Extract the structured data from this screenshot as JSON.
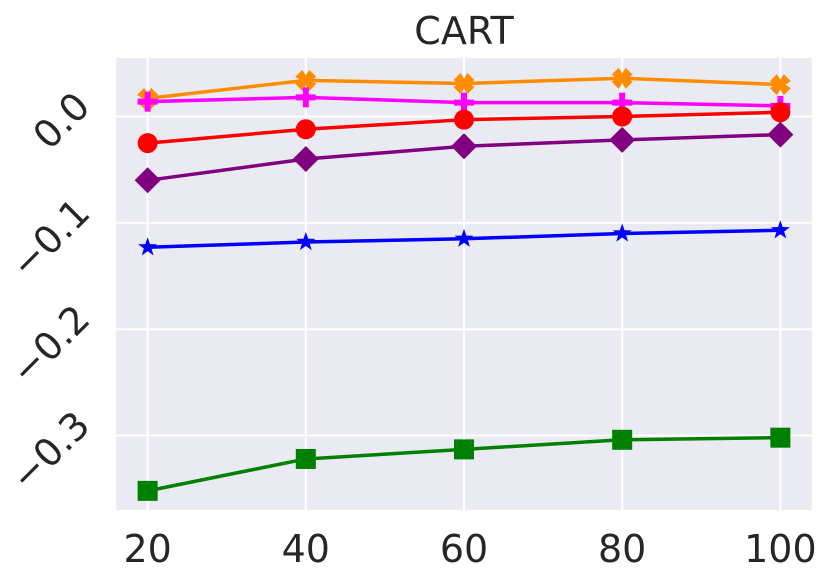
{
  "chart_data": {
    "type": "line",
    "title": "CART",
    "xlabel": "",
    "ylabel": "",
    "x": [
      20,
      40,
      60,
      80,
      100
    ],
    "xticks": [
      "20",
      "40",
      "60",
      "80",
      "100"
    ],
    "yticks": [
      "0.0",
      "−0.1",
      "−0.2",
      "−0.3"
    ],
    "ytick_values": [
      0.0,
      -0.1,
      -0.2,
      -0.3
    ],
    "xlim": [
      16,
      104
    ],
    "ylim": [
      -0.37,
      0.055
    ],
    "grid": true,
    "legend": "none",
    "background": "#eaeaf2",
    "series": [
      {
        "color": "#ff8c00",
        "marker": "x",
        "values": [
          0.017,
          0.034,
          0.031,
          0.036,
          0.03
        ]
      },
      {
        "color": "#ff00ff",
        "marker": "plus",
        "values": [
          0.014,
          0.018,
          0.013,
          0.013,
          0.01
        ]
      },
      {
        "color": "#ff0000",
        "marker": "circle",
        "values": [
          -0.025,
          -0.012,
          -0.003,
          0.0,
          0.004
        ]
      },
      {
        "color": "#800080",
        "marker": "diamond",
        "values": [
          -0.06,
          -0.04,
          -0.028,
          -0.022,
          -0.017
        ]
      },
      {
        "color": "#0000ff",
        "marker": "star",
        "values": [
          -0.123,
          -0.118,
          -0.115,
          -0.11,
          -0.107
        ]
      },
      {
        "color": "#008000",
        "marker": "square",
        "values": [
          -0.352,
          -0.322,
          -0.313,
          -0.304,
          -0.302
        ]
      }
    ]
  }
}
